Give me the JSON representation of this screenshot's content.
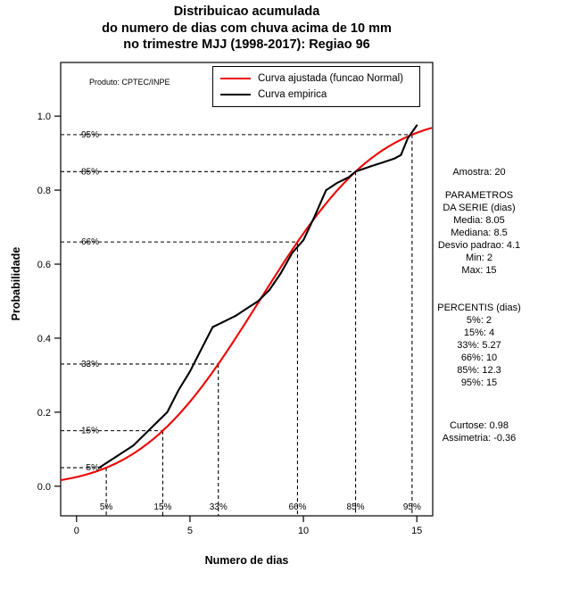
{
  "chart_data": {
    "type": "line",
    "title_lines": [
      "Distribuicao acumulada",
      "do numero de dias com chuva acima de 10 mm",
      "no trimestre MJJ (1998-2017): Regiao 96"
    ],
    "xlabel": "Numero de dias",
    "ylabel": "Probabilidade",
    "x_ticks": [
      "0",
      "5",
      "10",
      "15"
    ],
    "y_ticks": [
      "0.0",
      "0.2",
      "0.4",
      "0.6",
      "0.8",
      "1.0"
    ],
    "xlim": [
      -0.7,
      15.7
    ],
    "ylim": [
      -0.08,
      1.145
    ],
    "grid": false,
    "legend_position": "top-center",
    "annotation": "Produto: CPTEC/INPE",
    "series": [
      {
        "name": "Curva ajustada (funcao Normal)",
        "color": "#ee0000",
        "kind": "normal_cdf",
        "mean": 8.05,
        "sd": 4.1
      },
      {
        "name": "Curva empirica",
        "color": "#000000",
        "kind": "polyline",
        "points": [
          [
            1,
            0.05
          ],
          [
            2,
            0.09
          ],
          [
            2.5,
            0.11
          ],
          [
            3,
            0.14
          ],
          [
            3.5,
            0.17
          ],
          [
            4,
            0.2
          ],
          [
            4.5,
            0.26
          ],
          [
            5,
            0.31
          ],
          [
            5.5,
            0.37
          ],
          [
            6,
            0.43
          ],
          [
            6.5,
            0.445
          ],
          [
            7,
            0.46
          ],
          [
            7.5,
            0.48
          ],
          [
            8,
            0.5
          ],
          [
            8.5,
            0.53
          ],
          [
            9,
            0.575
          ],
          [
            9.5,
            0.63
          ],
          [
            10,
            0.665
          ],
          [
            10.5,
            0.73
          ],
          [
            11,
            0.8
          ],
          [
            11.5,
            0.82
          ],
          [
            12,
            0.835
          ],
          [
            12.3,
            0.85
          ],
          [
            13,
            0.865
          ],
          [
            13.5,
            0.875
          ],
          [
            14,
            0.885
          ],
          [
            14.3,
            0.895
          ],
          [
            14.6,
            0.94
          ],
          [
            15,
            0.975
          ]
        ]
      }
    ],
    "guides": [
      {
        "label": "5%",
        "p": 0.05,
        "x": 1.31
      },
      {
        "label": "15%",
        "p": 0.15,
        "x": 3.8
      },
      {
        "label": "33%",
        "p": 0.33,
        "x": 6.25
      },
      {
        "label": "66%",
        "p": 0.66,
        "x": 9.74
      },
      {
        "label": "85%",
        "p": 0.85,
        "x": 12.3
      },
      {
        "label": "95%",
        "p": 0.95,
        "x": 14.79
      }
    ]
  },
  "stats": {
    "sample": "Amostra: 20",
    "params_header1": "PARAMETROS",
    "params_header2": "DA SERIE (dias)",
    "params": [
      "Media: 8.05",
      "Mediana: 8.5",
      "Desvio padrao: 4.1",
      "Min: 2",
      "Max: 15"
    ],
    "percentis_header": "PERCENTIS (dias)",
    "percentis": [
      "5%: 2",
      "15%: 4",
      "33%: 5.27",
      "66%: 10",
      "85%: 12.3",
      "95%: 15"
    ],
    "curtose": "Curtose: 0.98",
    "assimetria": "Assimetria: -0.36"
  }
}
